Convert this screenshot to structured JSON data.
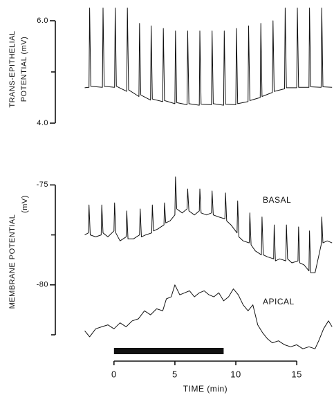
{
  "chart_data": [
    {
      "type": "line",
      "ylabel": [
        "TRANS-EPITHELIAL",
        "POTENTIAL (mV)"
      ],
      "xlim": [
        -2.6,
        18.0
      ],
      "ylim": [
        4.0,
        6.27
      ],
      "yticks": [
        {
          "value": 6.0,
          "label": "6.0"
        },
        {
          "value": 4.0,
          "label": "4.0"
        }
      ],
      "minor_yticks": [
        5.0
      ],
      "series": [
        {
          "name": null,
          "color": "#111111",
          "x": [
            -2.4,
            -2.05,
            -2.0,
            -1.9,
            -0.95,
            -0.9,
            -0.8,
            0.05,
            0.1,
            0.2,
            1.05,
            1.1,
            1.2,
            2.05,
            2.1,
            2.2,
            3.0,
            3.05,
            3.15,
            4.0,
            4.05,
            4.15,
            5.0,
            5.05,
            5.15,
            6.0,
            6.05,
            6.15,
            7.0,
            7.05,
            7.15,
            8.0,
            8.05,
            8.15,
            9.0,
            9.05,
            9.15,
            10.0,
            10.05,
            10.15,
            11.0,
            11.05,
            11.15,
            12.0,
            12.05,
            12.15,
            13.0,
            13.05,
            13.15,
            14.0,
            14.05,
            14.15,
            15.0,
            15.05,
            15.15,
            16.0,
            16.05,
            16.15,
            17.0,
            17.05,
            17.15,
            17.9
          ],
          "values": [
            4.69,
            4.7,
            6.25,
            4.72,
            4.7,
            6.25,
            4.72,
            4.7,
            6.25,
            4.72,
            4.62,
            6.25,
            4.65,
            4.52,
            5.95,
            4.55,
            4.45,
            5.9,
            4.47,
            4.42,
            5.85,
            4.44,
            4.38,
            5.8,
            4.4,
            4.36,
            5.8,
            4.38,
            4.35,
            5.8,
            4.37,
            4.36,
            5.8,
            4.38,
            4.35,
            5.8,
            4.37,
            4.36,
            5.85,
            4.38,
            4.42,
            5.9,
            4.44,
            4.5,
            5.95,
            4.52,
            4.6,
            6.0,
            4.62,
            4.67,
            6.25,
            4.69,
            4.69,
            6.25,
            4.7,
            4.7,
            6.25,
            4.71,
            4.7,
            6.25,
            4.71,
            4.7
          ]
        }
      ]
    },
    {
      "type": "line",
      "ylabel": [
        "MEMBRANE POTENTIAL",
        "(mV)"
      ],
      "xlabel": "TIME (min)",
      "xlim": [
        -2.6,
        18.0
      ],
      "xticks": [
        0,
        5,
        10,
        15
      ],
      "ylim": [
        -83.4,
        -74.4
      ],
      "yticks": [
        -75,
        -80
      ],
      "minor_yticks": [
        -77.5,
        -82.5
      ],
      "stimulus_x": [
        0,
        9
      ],
      "series": [
        {
          "name": "BASAL",
          "color": "#111111",
          "x": [
            -2.4,
            -2.1,
            -2.05,
            -1.95,
            -1.5,
            -1.05,
            -1.0,
            -0.9,
            -0.5,
            0.0,
            0.05,
            0.15,
            0.5,
            1.0,
            1.05,
            1.15,
            1.6,
            2.1,
            2.15,
            2.25,
            2.6,
            3.1,
            3.15,
            3.25,
            3.6,
            4.1,
            4.15,
            4.25,
            4.6,
            5.0,
            5.05,
            5.15,
            5.6,
            6.0,
            6.05,
            6.15,
            6.6,
            7.0,
            7.05,
            7.15,
            7.6,
            8.0,
            8.05,
            8.15,
            8.6,
            9.1,
            9.15,
            9.25,
            9.6,
            10.1,
            10.15,
            10.25,
            10.6,
            11.1,
            11.15,
            11.25,
            11.6,
            12.1,
            12.15,
            12.25,
            12.6,
            13.1,
            13.15,
            13.25,
            13.6,
            14.1,
            14.15,
            14.25,
            14.6,
            15.1,
            15.15,
            15.25,
            15.6,
            16.0,
            16.05,
            16.15,
            16.5,
            17.0,
            17.05,
            17.15,
            17.5,
            17.9
          ],
          "values": [
            -77.5,
            -77.4,
            -76.0,
            -77.5,
            -77.6,
            -77.5,
            -76.0,
            -77.4,
            -77.6,
            -77.3,
            -75.9,
            -77.4,
            -77.8,
            -77.6,
            -76.3,
            -77.7,
            -77.7,
            -77.5,
            -76.2,
            -77.6,
            -77.5,
            -77.4,
            -76.0,
            -77.3,
            -77.2,
            -77.0,
            -75.9,
            -76.9,
            -76.8,
            -76.5,
            -74.6,
            -76.2,
            -76.4,
            -76.2,
            -75.2,
            -76.3,
            -76.5,
            -76.3,
            -75.2,
            -76.4,
            -76.5,
            -76.4,
            -75.3,
            -76.5,
            -76.6,
            -76.7,
            -75.4,
            -76.8,
            -77.0,
            -77.4,
            -75.8,
            -77.6,
            -77.8,
            -77.9,
            -76.4,
            -78.0,
            -78.3,
            -78.5,
            -76.6,
            -78.5,
            -78.6,
            -78.7,
            -77.0,
            -78.8,
            -78.7,
            -78.8,
            -77.0,
            -78.7,
            -78.9,
            -78.8,
            -77.1,
            -78.9,
            -79.0,
            -79.3,
            -77.3,
            -79.4,
            -79.4,
            -78.0,
            -76.6,
            -77.9,
            -77.8,
            -77.9
          ]
        },
        {
          "name": "APICAL",
          "color": "#111111",
          "x": [
            -2.4,
            -2.0,
            -1.5,
            -1.0,
            -0.5,
            0,
            0.5,
            1.0,
            1.5,
            2.0,
            2.5,
            3.0,
            3.5,
            4.0,
            4.3,
            4.7,
            5.0,
            5.4,
            5.8,
            6.2,
            6.6,
            7.0,
            7.4,
            7.8,
            8.2,
            8.6,
            9.0,
            9.4,
            9.8,
            10.2,
            10.6,
            11.0,
            11.4,
            11.8,
            12.2,
            12.6,
            13.0,
            13.5,
            14.0,
            14.5,
            15.0,
            15.5,
            16.0,
            16.5,
            16.8,
            17.2,
            17.6,
            17.9
          ],
          "values": [
            -82.3,
            -82.6,
            -82.2,
            -82.1,
            -82.0,
            -82.2,
            -81.9,
            -82.1,
            -81.8,
            -81.7,
            -81.3,
            -81.5,
            -81.2,
            -81.3,
            -80.7,
            -80.6,
            -80.0,
            -80.5,
            -80.4,
            -80.3,
            -80.6,
            -80.4,
            -80.3,
            -80.5,
            -80.6,
            -80.4,
            -80.8,
            -80.6,
            -80.2,
            -80.5,
            -81.0,
            -81.3,
            -81.0,
            -82.0,
            -82.4,
            -82.7,
            -82.9,
            -82.8,
            -83.0,
            -83.1,
            -83.0,
            -83.2,
            -83.1,
            -83.2,
            -82.8,
            -82.2,
            -81.8,
            -82.1
          ]
        }
      ]
    }
  ]
}
